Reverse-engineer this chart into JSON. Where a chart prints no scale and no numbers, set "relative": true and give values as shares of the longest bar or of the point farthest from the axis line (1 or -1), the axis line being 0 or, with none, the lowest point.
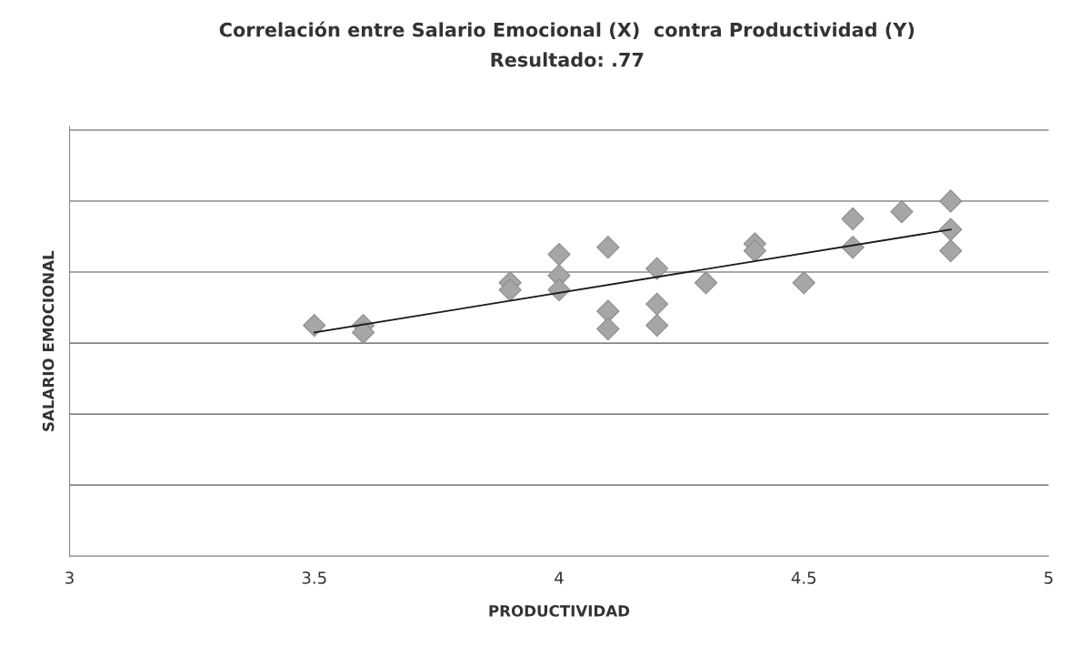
{
  "chart_data": {
    "type": "scatter",
    "title": "Correlación entre Salario Emocional (X)  contra Productividad (Y)",
    "subtitle": "Resultado: .77",
    "xlabel": "PRODUCTIVIDAD",
    "ylabel": "SALARIO EMOCIONAL",
    "relative": true,
    "xlim": [
      3,
      5
    ],
    "xticks": [
      3,
      3.5,
      4,
      4.5,
      5
    ],
    "grid": "y",
    "legend": false,
    "marker": "diamond",
    "series": [
      {
        "color": "#a6a6a6",
        "x": [
          3.5,
          3.6,
          3.6,
          3.9,
          3.9,
          4.0,
          4.0,
          4.0,
          4.1,
          4.1,
          4.1,
          4.2,
          4.2,
          4.2,
          4.3,
          4.4,
          4.4,
          4.5,
          4.6,
          4.6,
          4.7,
          4.8,
          4.8,
          4.8
        ],
        "values": [
          0.65,
          0.65,
          0.63,
          0.77,
          0.75,
          0.85,
          0.79,
          0.75,
          0.87,
          0.69,
          0.64,
          0.81,
          0.71,
          0.65,
          0.77,
          0.88,
          0.86,
          0.77,
          0.95,
          0.87,
          0.97,
          1.0,
          0.92,
          0.86
        ]
      },
      {
        "type": "line",
        "color": "#1a1a1a",
        "marker": "none",
        "x": [
          3.5,
          4.8
        ],
        "values": [
          0.63,
          0.92
        ]
      }
    ]
  }
}
